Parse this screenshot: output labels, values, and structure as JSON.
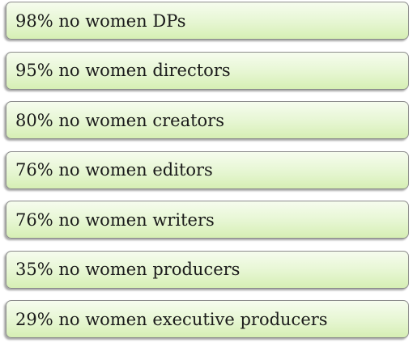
{
  "items": [
    "98% no women DPs",
    "95% no women directors",
    "80% no women creators",
    "76% no women editors",
    "76% no women writers",
    "35% no women producers",
    "29% no women executive producers"
  ]
}
